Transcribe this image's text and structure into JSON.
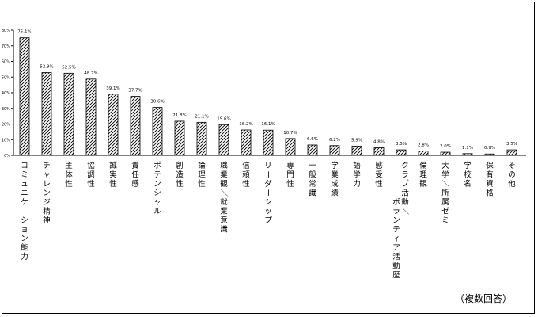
{
  "chart_data": {
    "type": "bar",
    "categories": [
      "コミュニケーション能力",
      "チャレンジ精神",
      "主体性",
      "協調性",
      "誠実性",
      "責任感",
      "ポテンシャル",
      "創造性",
      "論理性",
      "職業観／就業意識",
      "信頼性",
      "リーダーシップ",
      "専門性",
      "一般常識",
      "学業成績",
      "語学力",
      "感受性",
      "クラブ活動／ボランティア活動歴",
      "倫理観",
      "大学／所属ゼミ",
      "学校名",
      "保有資格",
      "その他"
    ],
    "values": [
      75.1,
      52.9,
      52.5,
      48.7,
      39.1,
      37.7,
      30.6,
      21.8,
      21.1,
      19.6,
      16.2,
      16.1,
      10.7,
      6.6,
      6.2,
      5.9,
      4.8,
      3.5,
      2.8,
      2.0,
      1.1,
      0.9,
      3.5
    ],
    "value_labels": [
      "75.1%",
      "52.9%",
      "52.5%",
      "48.7%",
      "39.1%",
      "37.7%",
      "30.6%",
      "21.8%",
      "21.1%",
      "19.6%",
      "16.2%",
      "16.1%",
      "10.7%",
      "6.6%",
      "6.2%",
      "5.9%",
      "4.8%",
      "3.5%",
      "2.8%",
      "2.0%",
      "1.1%",
      "0.9%",
      "3.5%"
    ],
    "ylim": [
      0,
      80
    ],
    "yticks": [
      "0%",
      "10%",
      "20%",
      "30%",
      "40%",
      "50%",
      "60%",
      "70%",
      "80%"
    ],
    "title": "",
    "xlabel": "",
    "ylabel": "",
    "grid": false,
    "bar_pattern": "diagonal-hatch",
    "colors": {
      "bar_fill": "#ffffff",
      "hatch": "#000000",
      "axis": "#000000"
    }
  },
  "note": "（複数回答）"
}
